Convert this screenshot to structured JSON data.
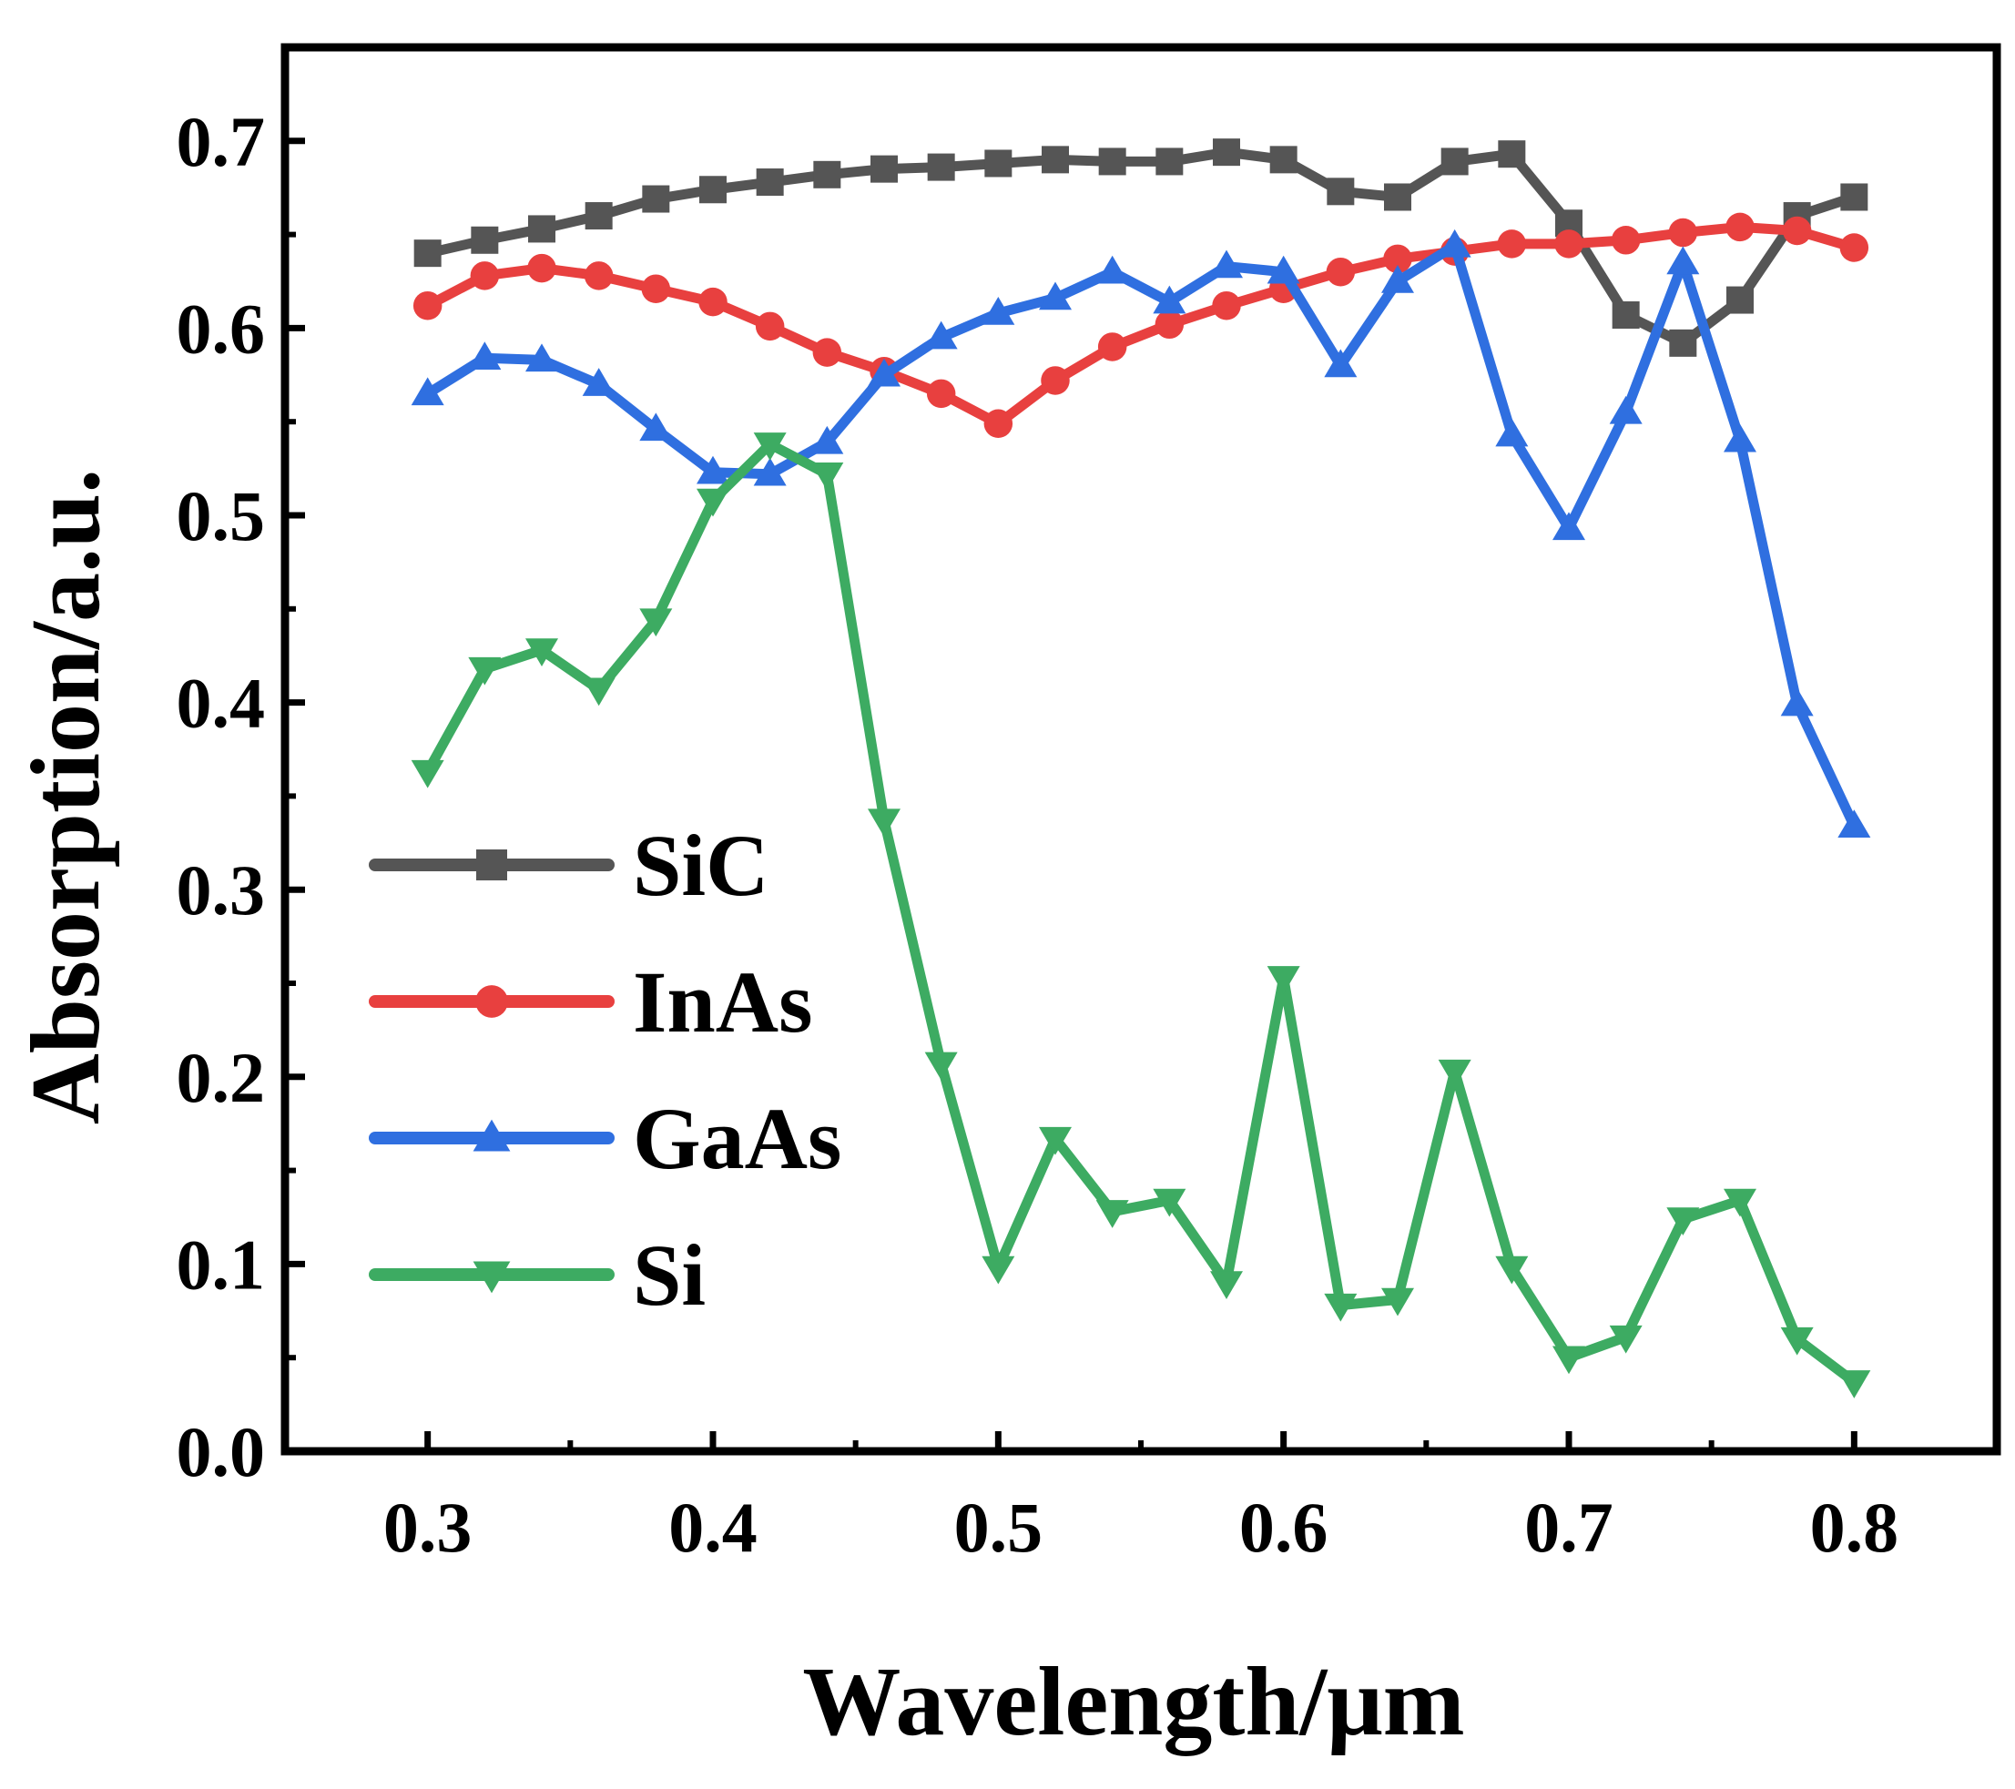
{
  "chart_data": {
    "type": "line",
    "title": "",
    "xlabel": "Wavelength/μm",
    "ylabel": "Absorption/a.u.",
    "xlim": [
      0.25,
      0.85
    ],
    "ylim": [
      0.0,
      0.75
    ],
    "xticks": [
      0.3,
      0.4,
      0.5,
      0.6,
      0.7,
      0.8
    ],
    "xtick_labels": [
      "0.3",
      "0.4",
      "0.5",
      "0.6",
      "0.7",
      "0.8"
    ],
    "yticks": [
      0.0,
      0.1,
      0.2,
      0.3,
      0.4,
      0.5,
      0.6,
      0.7
    ],
    "ytick_labels": [
      "0.0",
      "0.1",
      "0.2",
      "0.3",
      "0.4",
      "0.5",
      "0.6",
      "0.7"
    ],
    "grid": false,
    "legend_position": "left",
    "x": [
      0.3,
      0.32,
      0.34,
      0.36,
      0.38,
      0.4,
      0.42,
      0.44,
      0.46,
      0.48,
      0.5,
      0.52,
      0.54,
      0.56,
      0.58,
      0.6,
      0.62,
      0.64,
      0.66,
      0.68,
      0.7,
      0.72,
      0.74,
      0.76,
      0.78,
      0.8
    ],
    "series": [
      {
        "name": "SiC",
        "color": "#555555",
        "marker": "square",
        "values": [
          0.64,
          0.647,
          0.653,
          0.66,
          0.669,
          0.674,
          0.678,
          0.682,
          0.685,
          0.686,
          0.688,
          0.69,
          0.689,
          0.689,
          0.694,
          0.69,
          0.673,
          0.67,
          0.689,
          0.693,
          0.656,
          0.607,
          0.592,
          0.615,
          0.66,
          0.67
        ]
      },
      {
        "name": "InAs",
        "color": "#e8403f",
        "marker": "circle",
        "values": [
          0.612,
          0.628,
          0.632,
          0.628,
          0.621,
          0.614,
          0.601,
          0.587,
          0.577,
          0.565,
          0.549,
          0.572,
          0.59,
          0.602,
          0.612,
          0.621,
          0.63,
          0.637,
          0.641,
          0.645,
          0.645,
          0.647,
          0.651,
          0.654,
          0.652,
          0.643
        ]
      },
      {
        "name": "GaAs",
        "color": "#2f6fe0",
        "marker": "triangle-up",
        "values": [
          0.565,
          0.584,
          0.583,
          0.57,
          0.546,
          0.523,
          0.522,
          0.539,
          0.575,
          0.595,
          0.608,
          0.616,
          0.63,
          0.614,
          0.633,
          0.63,
          0.58,
          0.625,
          0.644,
          0.543,
          0.493,
          0.555,
          0.635,
          0.54,
          0.399,
          0.334
        ]
      },
      {
        "name": "Si",
        "color": "#3dab62",
        "marker": "triangle-down",
        "values": [
          0.363,
          0.418,
          0.428,
          0.407,
          0.444,
          0.508,
          0.538,
          0.522,
          0.337,
          0.207,
          0.098,
          0.167,
          0.128,
          0.134,
          0.09,
          0.253,
          0.078,
          0.081,
          0.203,
          0.098,
          0.05,
          0.061,
          0.124,
          0.134,
          0.06,
          0.037
        ]
      }
    ]
  }
}
